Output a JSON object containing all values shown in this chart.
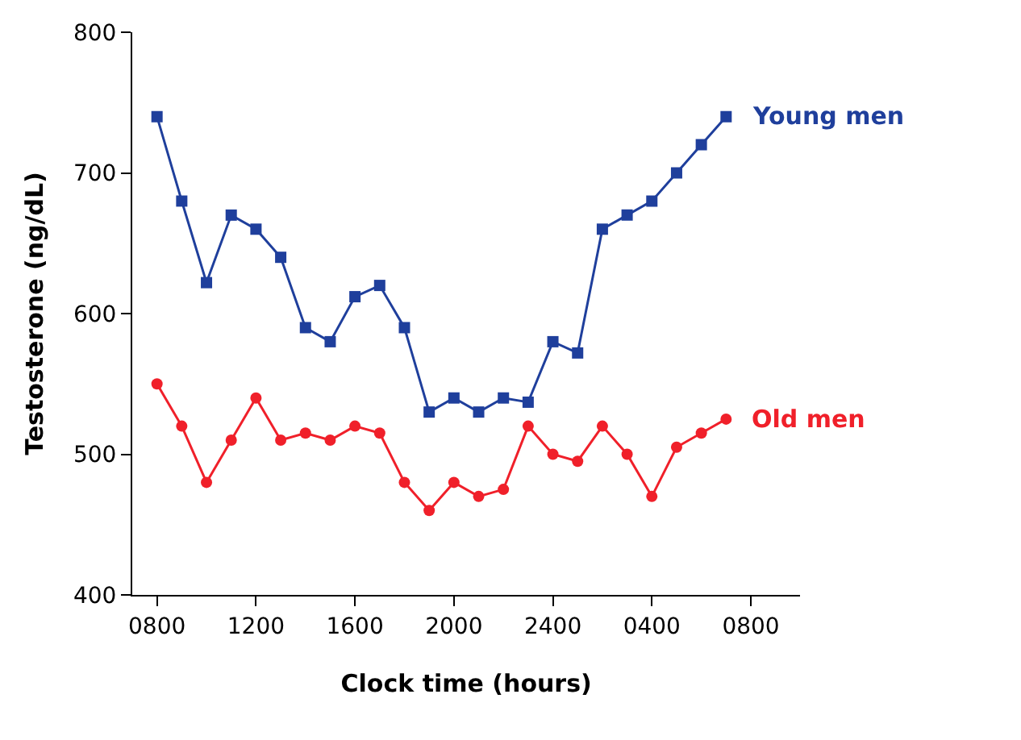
{
  "chart_data": {
    "type": "line",
    "xlabel": "Clock time (hours)",
    "ylabel": "Testosterone (ng/dL)",
    "categories": [
      "0800",
      null,
      null,
      null,
      "1200",
      null,
      null,
      null,
      "1600",
      null,
      null,
      null,
      "2000",
      null,
      null,
      null,
      "2400",
      null,
      null,
      null,
      "0400",
      null,
      null,
      null,
      "0800"
    ],
    "ylim": [
      400,
      800
    ],
    "yticks": [
      400,
      500,
      600,
      700,
      800
    ],
    "grid": false,
    "legend": false,
    "series": [
      {
        "name": "Young men",
        "color": "#1f3f9c",
        "marker": "square",
        "values": [
          740,
          680,
          622,
          670,
          660,
          640,
          590,
          580,
          612,
          620,
          590,
          530,
          540,
          530,
          540,
          537,
          580,
          572,
          660,
          670,
          680,
          700,
          720,
          740,
          null
        ]
      },
      {
        "name": "Old men",
        "color": "#f0202a",
        "marker": "circle",
        "values": [
          550,
          520,
          480,
          510,
          540,
          510,
          515,
          510,
          520,
          515,
          480,
          460,
          480,
          470,
          475,
          520,
          500,
          495,
          520,
          500,
          470,
          505,
          515,
          525,
          null
        ]
      }
    ]
  }
}
